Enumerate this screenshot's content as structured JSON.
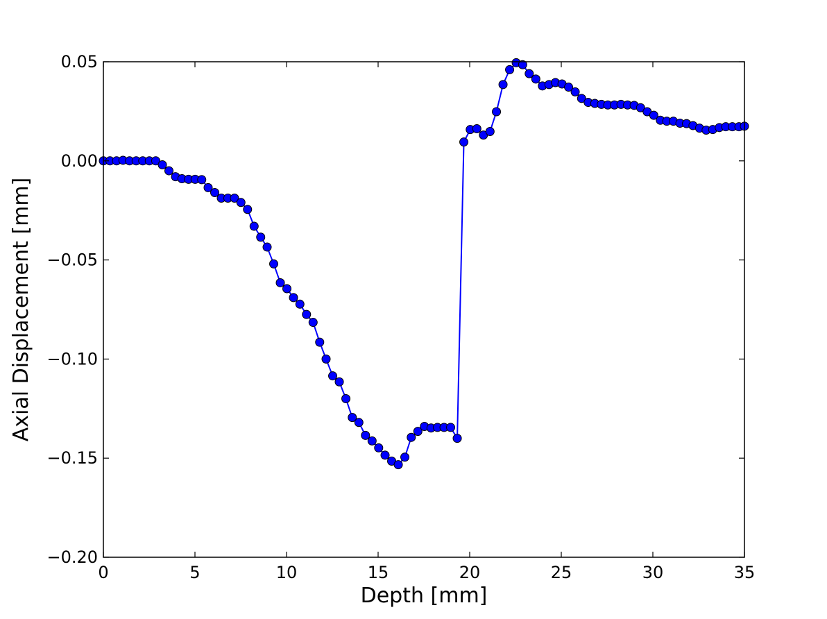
{
  "chart_data": {
    "type": "line",
    "title": "",
    "xlabel": "Depth [mm]",
    "ylabel": "Axial Displacement [mm]",
    "xlim": [
      0,
      35
    ],
    "ylim": [
      -0.2,
      0.05
    ],
    "xticks": [
      0,
      5,
      10,
      15,
      20,
      25,
      30,
      35
    ],
    "xtick_labels": [
      "0",
      "5",
      "10",
      "15",
      "20",
      "25",
      "30",
      "35"
    ],
    "yticks": [
      -0.2,
      -0.15,
      -0.1,
      -0.05,
      0.0,
      0.05
    ],
    "ytick_labels": [
      "−0.20",
      "−0.15",
      "−0.10",
      "−0.05",
      "0.00",
      "0.05"
    ],
    "grid": false,
    "legend": "none",
    "colors": {
      "series": "#0000ff",
      "axes": "#000000",
      "background": "#ffffff"
    },
    "series": [
      {
        "marker": "circle",
        "x": [
          0.0,
          0.36,
          0.72,
          1.07,
          1.43,
          1.79,
          2.15,
          2.51,
          2.86,
          3.22,
          3.58,
          3.94,
          4.29,
          4.65,
          5.01,
          5.37,
          5.72,
          6.08,
          6.44,
          6.8,
          7.16,
          7.51,
          7.87,
          8.23,
          8.59,
          8.94,
          9.3,
          9.66,
          10.02,
          10.38,
          10.73,
          11.09,
          11.45,
          11.81,
          12.16,
          12.52,
          12.88,
          13.24,
          13.59,
          13.95,
          14.31,
          14.67,
          15.03,
          15.38,
          15.74,
          16.1,
          16.46,
          16.81,
          17.17,
          17.53,
          17.89,
          18.24,
          18.6,
          18.96,
          19.32,
          19.68,
          20.03,
          20.39,
          20.75,
          21.11,
          21.46,
          21.82,
          22.18,
          22.54,
          22.89,
          23.25,
          23.61,
          23.97,
          24.33,
          24.68,
          25.04,
          25.4,
          25.76,
          26.11,
          26.47,
          26.83,
          27.19,
          27.54,
          27.9,
          28.26,
          28.62,
          28.98,
          29.33,
          29.69,
          30.05,
          30.41,
          30.76,
          31.12,
          31.48,
          31.84,
          32.19,
          32.55,
          32.91,
          33.27,
          33.63,
          33.98,
          34.34,
          34.7,
          35.0
        ],
        "y": [
          0.0,
          0.0,
          0.0,
          0.0003,
          0.0,
          0.0,
          0.0,
          0.0,
          0.0,
          -0.002,
          -0.005,
          -0.008,
          -0.009,
          -0.0093,
          -0.0093,
          -0.0095,
          -0.0135,
          -0.016,
          -0.0188,
          -0.0188,
          -0.0188,
          -0.021,
          -0.0245,
          -0.033,
          -0.0385,
          -0.0435,
          -0.052,
          -0.0615,
          -0.0645,
          -0.069,
          -0.0723,
          -0.0775,
          -0.0815,
          -0.0915,
          -0.1,
          -0.1085,
          -0.1115,
          -0.12,
          -0.1295,
          -0.132,
          -0.1385,
          -0.1413,
          -0.1448,
          -0.1485,
          -0.1515,
          -0.1533,
          -0.1495,
          -0.1395,
          -0.1365,
          -0.134,
          -0.1348,
          -0.1345,
          -0.1345,
          -0.1345,
          -0.14,
          0.0095,
          0.0158,
          0.0162,
          0.013,
          0.0148,
          0.0248,
          0.0385,
          0.046,
          0.0495,
          0.0485,
          0.044,
          0.0413,
          0.0378,
          0.0385,
          0.0395,
          0.0388,
          0.0372,
          0.0348,
          0.0315,
          0.0295,
          0.029,
          0.0285,
          0.0282,
          0.0282,
          0.0285,
          0.0282,
          0.028,
          0.0268,
          0.0248,
          0.023,
          0.0205,
          0.02,
          0.02,
          0.019,
          0.0188,
          0.0178,
          0.0165,
          0.0155,
          0.0158,
          0.0168,
          0.0172,
          0.0172,
          0.0172,
          0.0175
        ]
      }
    ]
  }
}
